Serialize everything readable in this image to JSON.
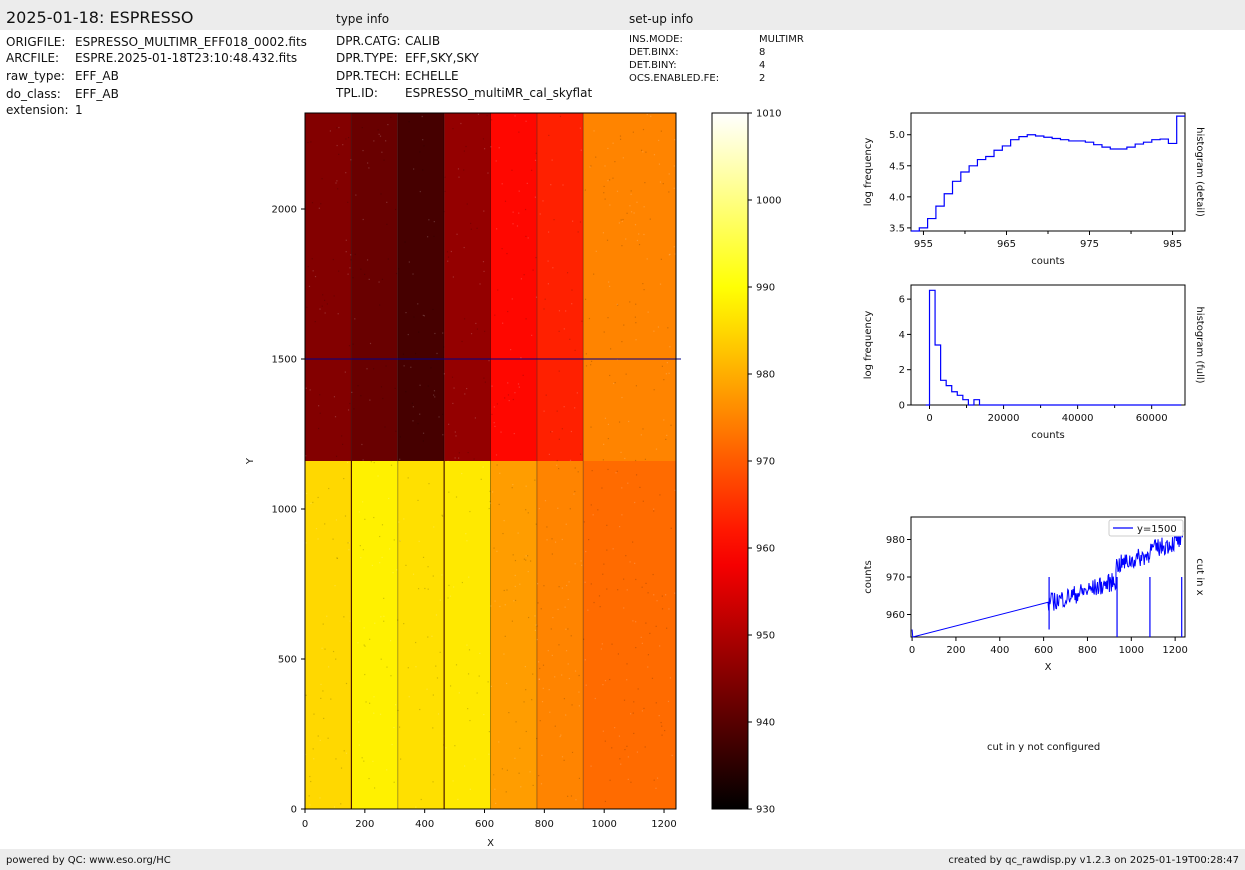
{
  "header": {
    "title": "2025-01-18: ESPRESSO",
    "type_info_label": "type info",
    "setup_info_label": "set-up info"
  },
  "file_info": [
    {
      "key": "ORIGFILE:",
      "value": "ESPRESSO_MULTIMR_EFF018_0002.fits"
    },
    {
      "key": "ARCFILE:",
      "value": "ESPRE.2025-01-18T23:10:48.432.fits"
    },
    {
      "key": "raw_type:",
      "value": "EFF_AB"
    },
    {
      "key": "do_class:",
      "value": "EFF_AB"
    },
    {
      "key": "extension:",
      "value": "1"
    }
  ],
  "type_info": [
    {
      "key": "DPR.CATG:",
      "value": "CALIB"
    },
    {
      "key": "DPR.TYPE:",
      "value": "EFF,SKY,SKY"
    },
    {
      "key": "DPR.TECH:",
      "value": "ECHELLE"
    },
    {
      "key": "TPL.ID:",
      "value": "ESPRESSO_multiMR_cal_skyflat"
    }
  ],
  "setup_info": [
    {
      "key": "INS.MODE:",
      "value": "MULTIMR"
    },
    {
      "key": "DET.BINX:",
      "value": "8"
    },
    {
      "key": "DET.BINY:",
      "value": "4"
    },
    {
      "key": "OCS.ENABLED.FE:",
      "value": "2"
    }
  ],
  "footer": {
    "left": "powered by QC: www.eso.org/HC",
    "right": "created by qc_rawdisp.py v1.2.3 on 2025-01-19T00:28:47"
  },
  "note_cut_y": "cut in y not configured",
  "colors": {
    "band": "#ececec",
    "histogram": "#0000ff",
    "cutline": "#00008b"
  },
  "chart_data": [
    {
      "type": "heatmap",
      "colormap": "hot",
      "xlabel": "X",
      "ylabel": "Y",
      "xlim": [
        0,
        1240
      ],
      "ylim": [
        0,
        2320
      ],
      "xticks": [
        0,
        200,
        400,
        600,
        800,
        1000,
        1200
      ],
      "yticks": [
        0,
        500,
        1000,
        1500,
        2000
      ],
      "colorbar": {
        "min": 930,
        "max": 1010,
        "ticks": [
          930,
          940,
          950,
          960,
          970,
          980,
          990,
          1000,
          1010
        ]
      },
      "cut_row_y": 1500,
      "column_edges": [
        0,
        155,
        310,
        465,
        620,
        775,
        930,
        1240
      ],
      "row_split_y": 1160,
      "upper_block_levels": [
        945,
        942,
        938,
        947,
        960,
        963,
        975
      ],
      "lower_block_levels": [
        985,
        988,
        986,
        987,
        978,
        975,
        972
      ]
    },
    {
      "type": "line",
      "step": true,
      "ylabel": "log frequency",
      "xlabel": "counts",
      "right_label": "histogram (detail)",
      "xlim": [
        953.5,
        986.5
      ],
      "ylim": [
        3.45,
        5.35
      ],
      "xticks": [
        955,
        965,
        975,
        985
      ],
      "yticks": [
        3.5,
        4.0,
        4.5,
        5.0
      ],
      "x": [
        954,
        955,
        956,
        957,
        958,
        959,
        960,
        961,
        962,
        963,
        964,
        965,
        966,
        967,
        968,
        969,
        970,
        971,
        972,
        973,
        974,
        975,
        976,
        977,
        978,
        979,
        980,
        981,
        982,
        983,
        984,
        985,
        986
      ],
      "values": [
        3.45,
        3.5,
        3.65,
        3.85,
        4.05,
        4.25,
        4.4,
        4.5,
        4.6,
        4.65,
        4.75,
        4.82,
        4.92,
        4.97,
        5.0,
        4.98,
        4.96,
        4.94,
        4.92,
        4.9,
        4.9,
        4.88,
        4.84,
        4.8,
        4.77,
        4.77,
        4.8,
        4.85,
        4.88,
        4.92,
        4.93,
        4.86,
        5.3
      ]
    },
    {
      "type": "line",
      "step": true,
      "ylabel": "log frequency",
      "xlabel": "counts",
      "right_label": "histogram (full)",
      "xlim": [
        -5000,
        69000
      ],
      "ylim": [
        0,
        6.8
      ],
      "xticks": [
        0,
        20000,
        40000,
        60000
      ],
      "xtick_labels": [
        "0",
        "20000",
        "40000",
        "60000"
      ],
      "yticks": [
        0,
        2,
        4,
        6
      ],
      "x": [
        -1000,
        0,
        1500,
        3000,
        4500,
        6000,
        7500,
        9000,
        10500,
        12000,
        13500,
        15000,
        68000
      ],
      "values": [
        0,
        6.5,
        3.4,
        1.4,
        1.1,
        0.75,
        0.55,
        0.3,
        0,
        0.3,
        0,
        0,
        0
      ]
    },
    {
      "type": "line",
      "ylabel": "counts",
      "xlabel": "X",
      "right_label": "cut in x",
      "legend": "y=1500",
      "legend_position": "top-right",
      "xlim": [
        -5,
        1245
      ],
      "ylim": [
        954,
        986
      ],
      "xticks": [
        0,
        200,
        400,
        600,
        800,
        1000,
        1200
      ],
      "yticks": [
        960,
        970,
        980
      ],
      "segments": [
        {
          "from": 620,
          "to": 780,
          "base": 963,
          "noise": 2.5
        },
        {
          "from": 780,
          "to": 930,
          "base": 966,
          "noise": 2.5
        },
        {
          "from": 930,
          "to": 1080,
          "base": 973,
          "noise": 2.5
        },
        {
          "from": 1080,
          "to": 1240,
          "base": 977,
          "noise": 2.5
        }
      ],
      "dips": [
        [
          625,
          956
        ],
        [
          935,
          954
        ],
        [
          1085,
          954
        ],
        [
          1230,
          954
        ]
      ]
    }
  ]
}
